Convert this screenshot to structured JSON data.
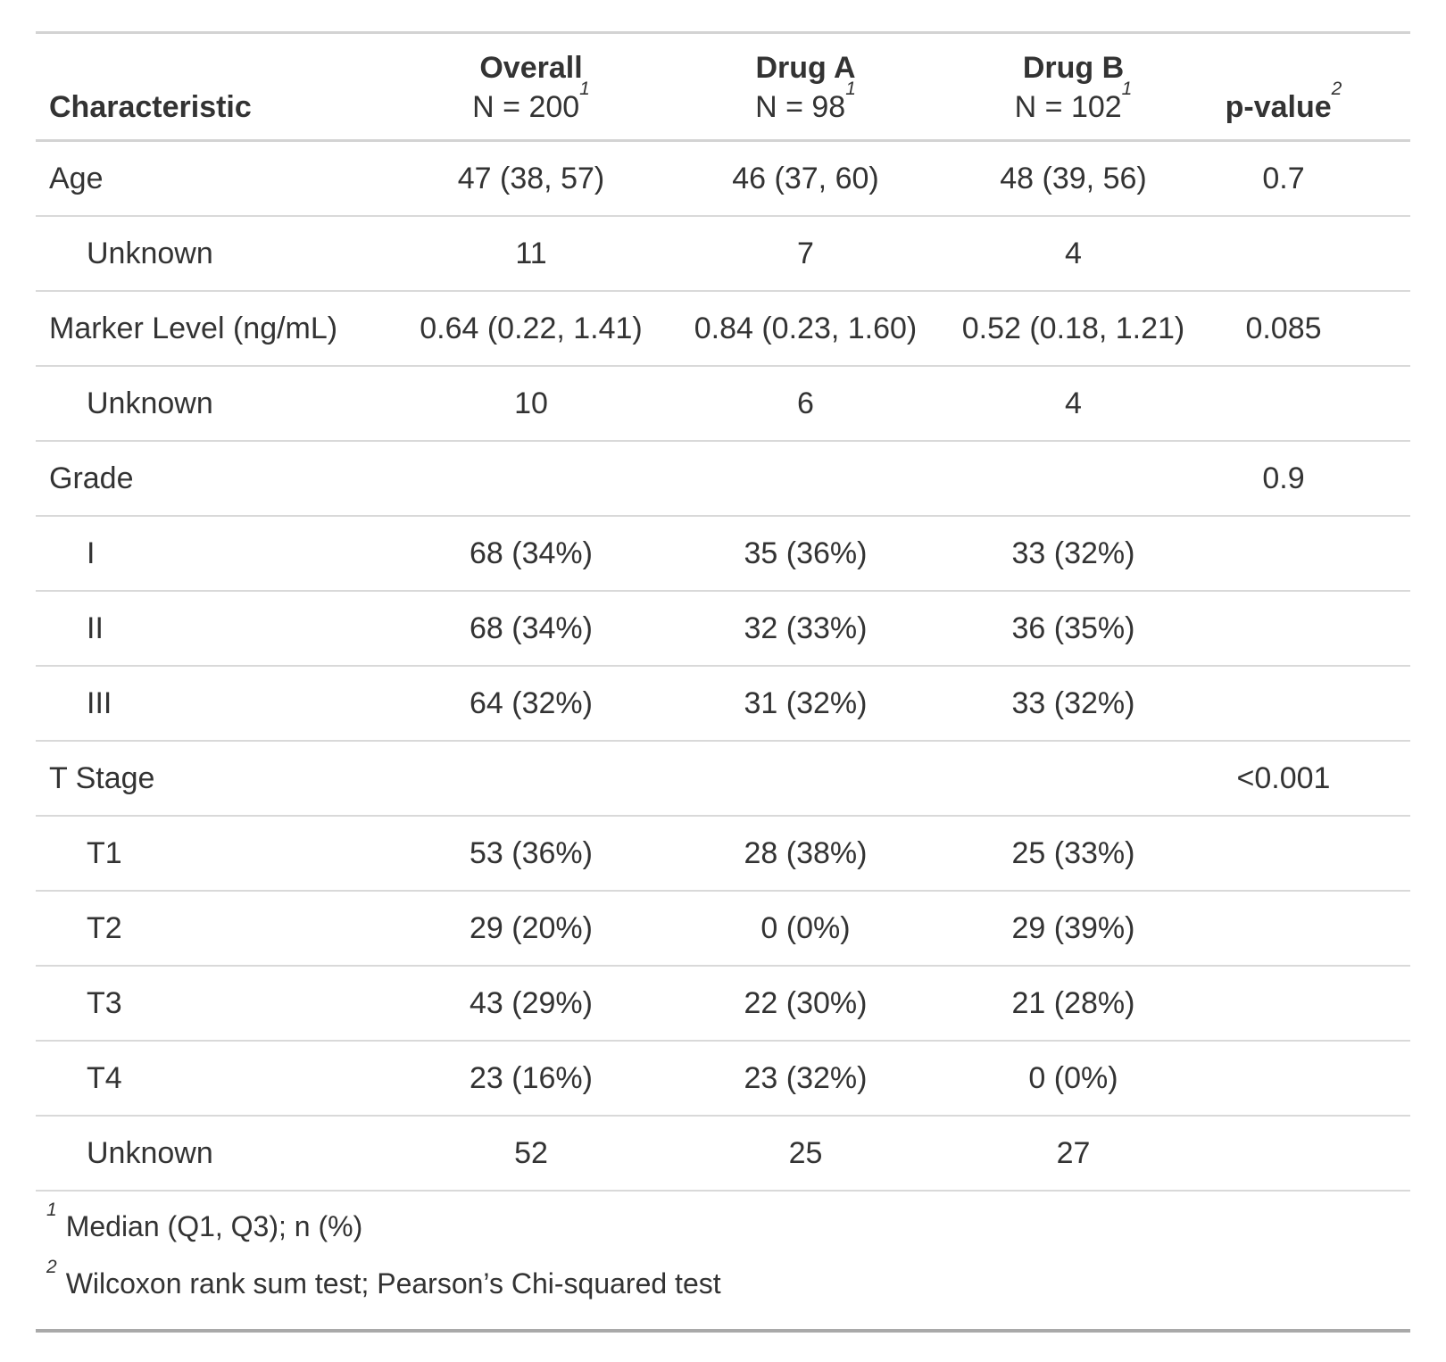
{
  "table": {
    "columns": [
      {
        "id": "label",
        "header": "Characteristic",
        "subheader": "",
        "footnote_mark": "",
        "align": "left"
      },
      {
        "id": "overall",
        "header": "Overall",
        "subheader": "N = 200",
        "footnote_mark": "1",
        "align": "center"
      },
      {
        "id": "drug_a",
        "header": "Drug A",
        "subheader": "N = 98",
        "footnote_mark": "1",
        "align": "center"
      },
      {
        "id": "drug_b",
        "header": "Drug B",
        "subheader": "N = 102",
        "footnote_mark": "1",
        "align": "center"
      },
      {
        "id": "p_value",
        "header": "p-value",
        "subheader": "",
        "footnote_mark": "2",
        "align": "center"
      }
    ],
    "rows": [
      {
        "label": "Age",
        "indent": false,
        "overall": "47 (38, 57)",
        "drug_a": "46 (37, 60)",
        "drug_b": "48 (39, 56)",
        "p_value": "0.7"
      },
      {
        "label": "Unknown",
        "indent": true,
        "overall": "11",
        "drug_a": "7",
        "drug_b": "4",
        "p_value": ""
      },
      {
        "label": "Marker Level (ng/mL)",
        "indent": false,
        "overall": "0.64 (0.22, 1.41)",
        "drug_a": "0.84 (0.23, 1.60)",
        "drug_b": "0.52 (0.18, 1.21)",
        "p_value": "0.085"
      },
      {
        "label": "Unknown",
        "indent": true,
        "overall": "10",
        "drug_a": "6",
        "drug_b": "4",
        "p_value": ""
      },
      {
        "label": "Grade",
        "indent": false,
        "overall": "",
        "drug_a": "",
        "drug_b": "",
        "p_value": "0.9"
      },
      {
        "label": "I",
        "indent": true,
        "overall": "68 (34%)",
        "drug_a": "35 (36%)",
        "drug_b": "33 (32%)",
        "p_value": ""
      },
      {
        "label": "II",
        "indent": true,
        "overall": "68 (34%)",
        "drug_a": "32 (33%)",
        "drug_b": "36 (35%)",
        "p_value": ""
      },
      {
        "label": "III",
        "indent": true,
        "overall": "64 (32%)",
        "drug_a": "31 (32%)",
        "drug_b": "33 (32%)",
        "p_value": ""
      },
      {
        "label": "T Stage",
        "indent": false,
        "overall": "",
        "drug_a": "",
        "drug_b": "",
        "p_value": "<0.001"
      },
      {
        "label": "T1",
        "indent": true,
        "overall": "53 (36%)",
        "drug_a": "28 (38%)",
        "drug_b": "25 (33%)",
        "p_value": ""
      },
      {
        "label": "T2",
        "indent": true,
        "overall": "29 (20%)",
        "drug_a": "0 (0%)",
        "drug_b": "29 (39%)",
        "p_value": ""
      },
      {
        "label": "T3",
        "indent": true,
        "overall": "43 (29%)",
        "drug_a": "22 (30%)",
        "drug_b": "21 (28%)",
        "p_value": ""
      },
      {
        "label": "T4",
        "indent": true,
        "overall": "23 (16%)",
        "drug_a": "23 (32%)",
        "drug_b": "0 (0%)",
        "p_value": ""
      },
      {
        "label": "Unknown",
        "indent": true,
        "overall": "52",
        "drug_a": "25",
        "drug_b": "27",
        "p_value": ""
      }
    ],
    "footnotes": [
      {
        "mark": "1",
        "text": "Median (Q1, Q3); n (%)"
      },
      {
        "mark": "2",
        "text": "Wilcoxon rank sum test; Pearson’s Chi-squared test"
      }
    ],
    "colors": {
      "text": "#333333",
      "border_light": "#d3d3d3",
      "row_divider": "#d9d9d9",
      "border_bottom": "#a9a9a9",
      "background": "#ffffff"
    }
  },
  "chart_data": {
    "type": "table",
    "title": "",
    "columns": [
      "Characteristic",
      "Overall, N = 200",
      "Drug A, N = 98",
      "Drug B, N = 102",
      "p-value"
    ],
    "rows": [
      [
        "Age",
        "47 (38, 57)",
        "46 (37, 60)",
        "48 (39, 56)",
        "0.7"
      ],
      [
        "Unknown",
        "11",
        "7",
        "4",
        ""
      ],
      [
        "Marker Level (ng/mL)",
        "0.64 (0.22, 1.41)",
        "0.84 (0.23, 1.60)",
        "0.52 (0.18, 1.21)",
        "0.085"
      ],
      [
        "Unknown",
        "10",
        "6",
        "4",
        ""
      ],
      [
        "Grade",
        "",
        "",
        "",
        "0.9"
      ],
      [
        "I",
        "68 (34%)",
        "35 (36%)",
        "33 (32%)",
        ""
      ],
      [
        "II",
        "68 (34%)",
        "32 (33%)",
        "36 (35%)",
        ""
      ],
      [
        "III",
        "64 (32%)",
        "31 (32%)",
        "33 (32%)",
        ""
      ],
      [
        "T Stage",
        "",
        "",
        "",
        "<0.001"
      ],
      [
        "T1",
        "53 (36%)",
        "28 (38%)",
        "25 (33%)",
        ""
      ],
      [
        "T2",
        "29 (20%)",
        "0 (0%)",
        "29 (39%)",
        ""
      ],
      [
        "T3",
        "43 (29%)",
        "22 (30%)",
        "21 (28%)",
        ""
      ],
      [
        "T4",
        "23 (16%)",
        "23 (32%)",
        "0 (0%)",
        ""
      ],
      [
        "Unknown",
        "52",
        "25",
        "27",
        ""
      ]
    ],
    "footnotes": [
      "1 Median (Q1, Q3); n (%)",
      "2 Wilcoxon rank sum test; Pearson’s Chi-squared test"
    ]
  }
}
